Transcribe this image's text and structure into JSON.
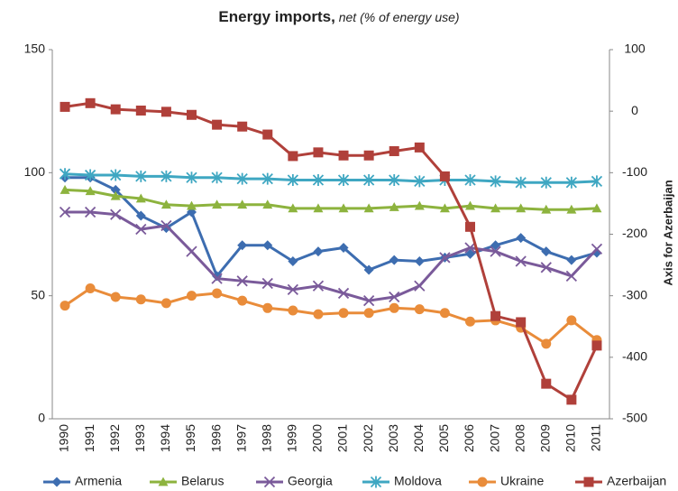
{
  "chart_data": {
    "type": "line",
    "title": "Energy imports,",
    "subtitle": "net (% of energy use)",
    "y2label": "Axis for Azerbaijan",
    "categories": [
      "1990",
      "1991",
      "1992",
      "1993",
      "1994",
      "1995",
      "1996",
      "1997",
      "1998",
      "1999",
      "2000",
      "2001",
      "2002",
      "2003",
      "2004",
      "2005",
      "2006",
      "2007",
      "2008",
      "2009",
      "2010",
      "2011"
    ],
    "ylim": [
      0,
      150
    ],
    "yticks": [
      0,
      50,
      100,
      150
    ],
    "y2lim": [
      -500,
      100
    ],
    "y2ticks": [
      -500,
      -400,
      -300,
      -200,
      -100,
      0,
      100
    ],
    "grid": false,
    "legend": "bottom",
    "series": [
      {
        "name": "Armenia",
        "color": "#3d6db0",
        "marker": "diamond",
        "values": [
          98,
          98,
          93,
          82.5,
          77.5,
          84,
          58,
          70.5,
          70.5,
          64,
          68,
          69.5,
          60.5,
          64.5,
          64,
          65.5,
          67,
          70.5,
          73.5,
          68,
          64.5,
          67.5
        ]
      },
      {
        "name": "Belarus",
        "color": "#8db33e",
        "marker": "triangle",
        "values": [
          93,
          92.5,
          90.5,
          89.5,
          87,
          86.5,
          87,
          87,
          87,
          85.5,
          85.5,
          85.5,
          85.5,
          86,
          86.5,
          85.5,
          86.5,
          85.5,
          85.5,
          85,
          85,
          85.5
        ]
      },
      {
        "name": "Georgia",
        "color": "#7a5a9a",
        "marker": "x",
        "values": [
          84,
          84,
          83,
          77,
          78.5,
          68,
          57,
          56,
          55,
          52.5,
          54,
          51,
          48,
          49.5,
          54,
          65.5,
          69.5,
          68,
          64,
          61.5,
          58,
          69
        ]
      },
      {
        "name": "Moldova",
        "color": "#3fa7c2",
        "marker": "star",
        "values": [
          99.5,
          99,
          99,
          98.5,
          98.5,
          98,
          98,
          97.5,
          97.5,
          97,
          97,
          97,
          97,
          97,
          96.5,
          97,
          97,
          96.5,
          96,
          96,
          96,
          96.5
        ]
      },
      {
        "name": "Ukraine",
        "color": "#e98c3a",
        "marker": "circle",
        "values": [
          46,
          53,
          49.5,
          48.5,
          47,
          50,
          51,
          48,
          45,
          44,
          42.5,
          43,
          43,
          45,
          44.5,
          43,
          39.5,
          40,
          37,
          30.5,
          40,
          32
        ]
      },
      {
        "name": "Azerbaijan",
        "color": "#b0403a",
        "marker": "square",
        "axis": "y2",
        "values": [
          7,
          13,
          3,
          1,
          -1,
          -6,
          -22,
          -25,
          -38,
          -73,
          -67,
          -72,
          -72,
          -65,
          -59,
          -106,
          -188,
          -333,
          -343,
          -443,
          -469,
          -381
        ]
      }
    ]
  }
}
